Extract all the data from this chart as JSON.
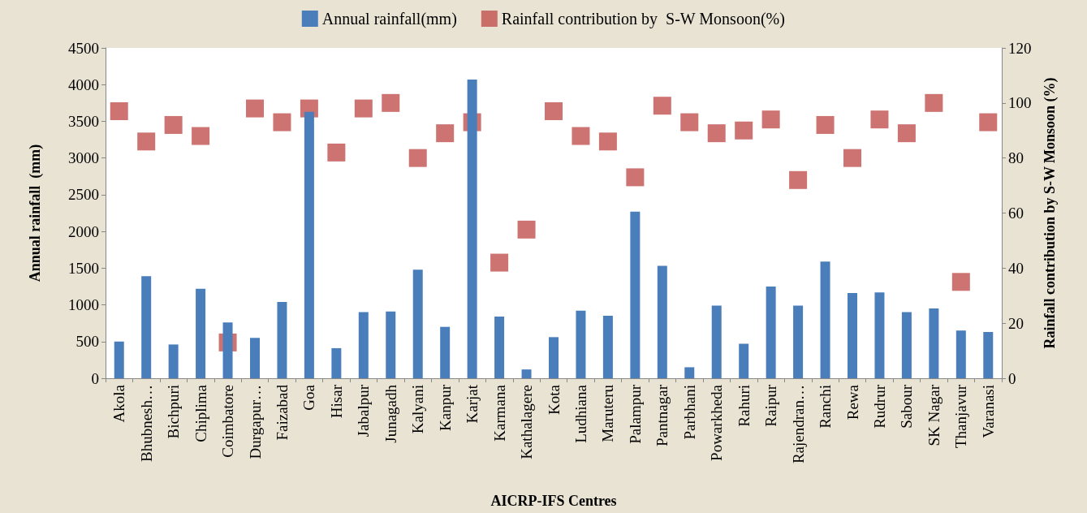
{
  "chart_data": {
    "type": "bar",
    "xlabel": "AICRP-IFS Centres",
    "ylabel": "Annual rainfall  (mm)",
    "y2label": "Rainfall contribution by S-W Monsoon (%)",
    "categories": [
      "Akola",
      "Bhubnesh…",
      "Bichpuri",
      "Chiplima",
      "Coimbatore",
      "Durgapur…",
      "Faizabad",
      "Goa",
      "Hisar",
      "Jabalpur",
      "Junagadh",
      "Kalyani",
      "Kanpur",
      "Karjat",
      "Karmana",
      "Kathalagere",
      "Kota",
      "Ludhiana",
      "Maruteru",
      "Palampur",
      "Pantnagar",
      "Parbhani",
      "Powarkheda",
      "Rahuri",
      "Raipur",
      "Rajendran…",
      "Ranchi",
      "Rewa",
      "Rudrur",
      "Sabour",
      "SK Nagar",
      "Thanjavur",
      "Varanasi"
    ],
    "series": [
      {
        "name": "Annual rainfall(mm)",
        "color": "#4a7ebb",
        "values": [
          500,
          1390,
          460,
          1220,
          760,
          550,
          1040,
          3630,
          410,
          900,
          910,
          1480,
          700,
          4070,
          840,
          120,
          560,
          920,
          850,
          2270,
          1530,
          150,
          990,
          470,
          1250,
          990,
          1590,
          1160,
          1170,
          900,
          950,
          650,
          630
        ]
      },
      {
        "name": "Rainfall contribution by  S-W Monsoon(%)",
        "type": "scatter",
        "axis": "y2",
        "color": "#c0504d",
        "values": [
          97,
          86,
          92,
          88,
          13,
          98,
          93,
          98,
          82,
          98,
          100,
          80,
          89,
          93,
          42,
          54,
          97,
          88,
          86,
          73,
          99,
          93,
          89,
          90,
          94,
          72,
          92,
          80,
          94,
          89,
          100,
          35,
          93
        ]
      }
    ],
    "ylim": [
      0,
      4500
    ],
    "yticks": [
      0,
      500,
      1000,
      1500,
      2000,
      2500,
      3000,
      3500,
      4000,
      4500
    ],
    "y2lim": [
      0,
      120
    ],
    "y2ticks": [
      0,
      20,
      40,
      60,
      80,
      100,
      120
    ],
    "marker": "square",
    "legend": "top",
    "grid": false
  }
}
